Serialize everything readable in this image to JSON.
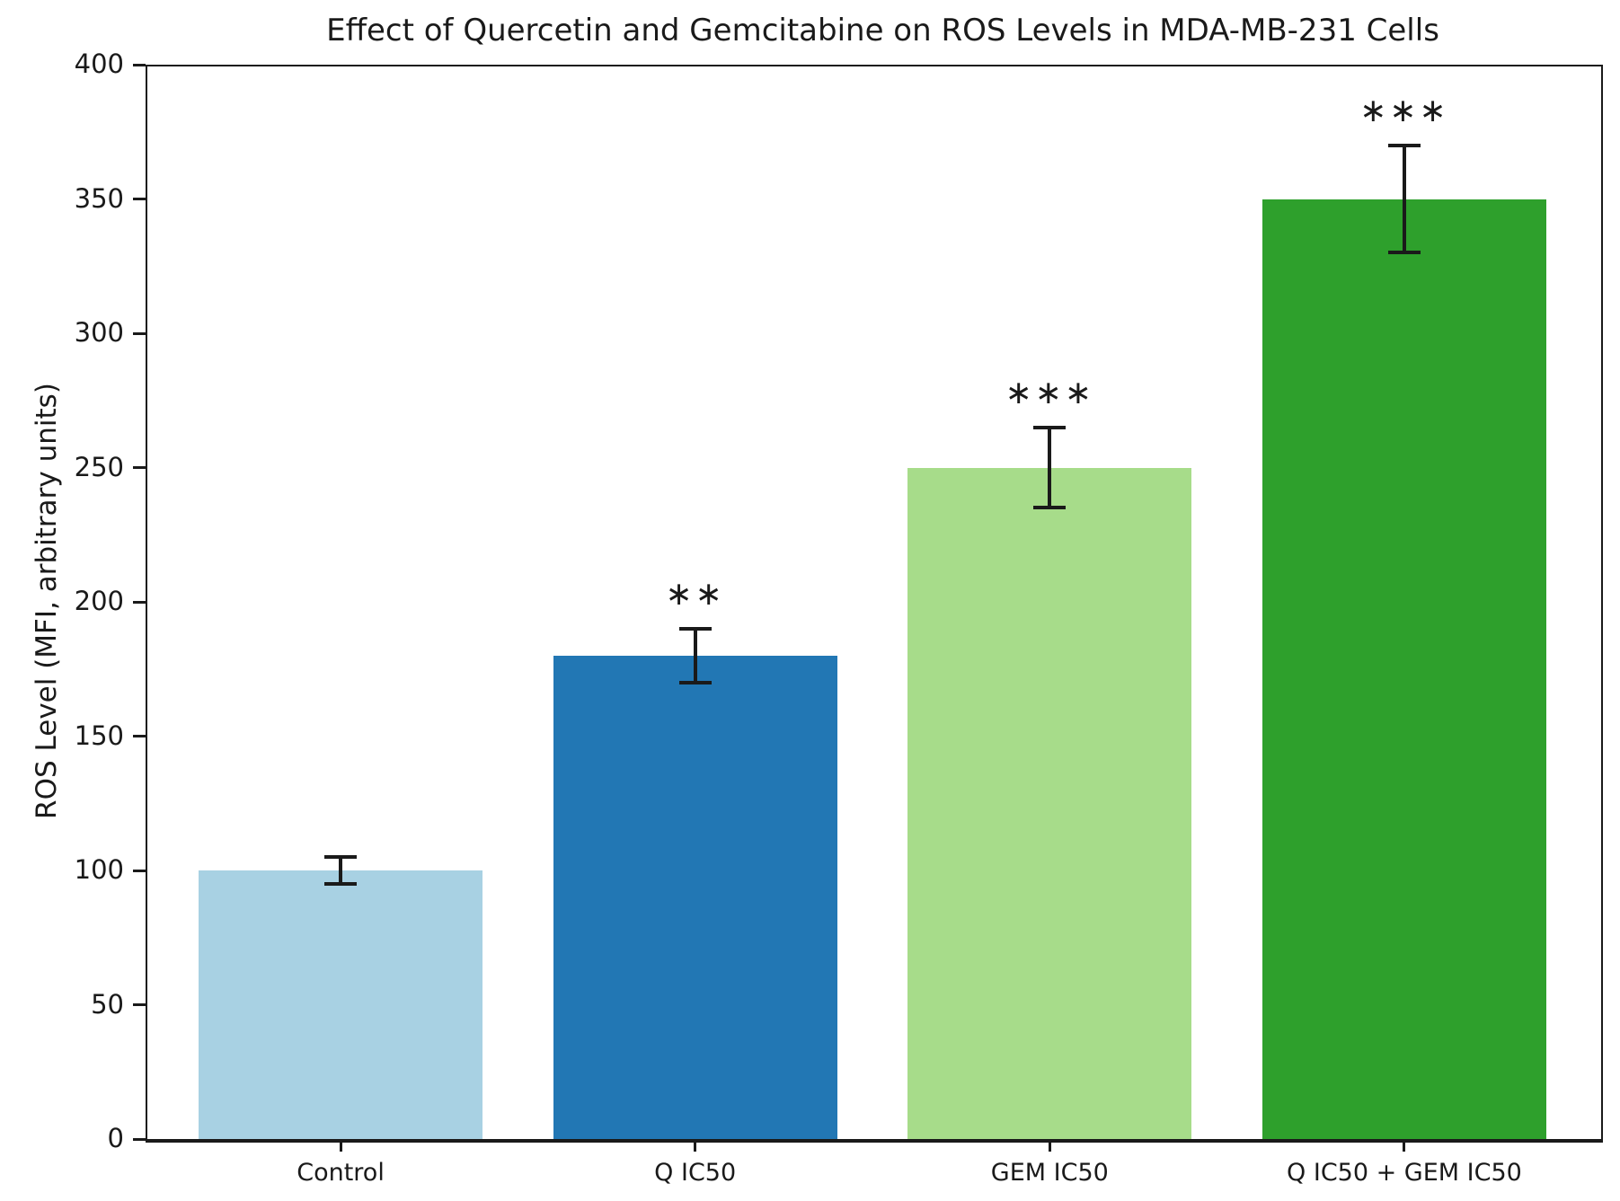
{
  "chart_data": {
    "type": "bar",
    "title": "Effect of Quercetin and Gemcitabine on ROS Levels in MDA-MB-231 Cells",
    "xlabel": "",
    "ylabel": "ROS Level (MFI, arbitrary units)",
    "categories": [
      "Control",
      "Q IC50",
      "GEM IC50",
      "Q IC50 + GEM IC50"
    ],
    "values": [
      100,
      180,
      250,
      350
    ],
    "error_bars": [
      5,
      10,
      15,
      20
    ],
    "significance": [
      "",
      "**",
      "***",
      "***"
    ],
    "bar_colors": [
      "#A8D1E3",
      "#2277B4",
      "#A7DC8A",
      "#2EA02C"
    ],
    "ylim": [
      0,
      400
    ],
    "yticks": [
      0,
      50,
      100,
      150,
      200,
      250,
      300,
      350,
      400
    ],
    "grid": false,
    "legend_position": "none",
    "axis_color": "#1a1a1a",
    "errorbar_color": "#1a1a1a",
    "background_color": "#ffffff"
  }
}
